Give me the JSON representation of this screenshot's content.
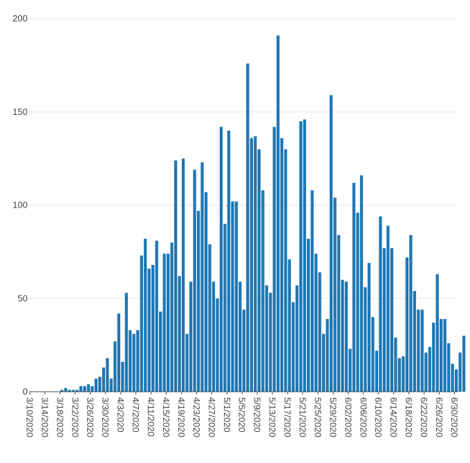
{
  "chart_data": {
    "type": "bar",
    "title": "",
    "xlabel": "",
    "ylabel": "",
    "ylim": [
      0,
      200
    ],
    "yticks": [
      0,
      50,
      100,
      150,
      200
    ],
    "grid": true,
    "bar_color": "#1f77b4",
    "x_tick_labels": [
      "3/10/2020",
      "3/14/2020",
      "3/18/2020",
      "3/22/2020",
      "3/26/2020",
      "3/30/2020",
      "4/3/2020",
      "4/7/2020",
      "4/11/2020",
      "4/15/2020",
      "4/19/2020",
      "4/23/2020",
      "4/27/2020",
      "5/1/2020",
      "5/5/2020",
      "5/9/2020",
      "5/13/2020",
      "5/17/2020",
      "5/21/2020",
      "5/25/2020",
      "5/29/2020",
      "6/02/2020",
      "6/06/2020",
      "6/10/2020",
      "6/14/2020",
      "6/18/2020",
      "6/22/2020",
      "6/26/2020",
      "6/30/2020"
    ],
    "x_start": "3/10/2020",
    "x_end": "7/1/2020",
    "values": [
      0,
      0,
      0,
      0,
      0,
      0,
      0,
      0,
      1,
      2,
      1,
      1,
      1,
      3,
      3,
      4,
      3,
      7,
      8,
      13,
      18,
      7,
      27,
      42,
      16,
      53,
      33,
      31,
      33,
      73,
      82,
      66,
      68,
      81,
      43,
      74,
      74,
      80,
      124,
      62,
      125,
      31,
      59,
      119,
      97,
      123,
      107,
      79,
      59,
      50,
      142,
      90,
      140,
      102,
      102,
      59,
      44,
      176,
      136,
      137,
      130,
      108,
      57,
      53,
      142,
      191,
      136,
      130,
      71,
      48,
      57,
      145,
      146,
      82,
      108,
      74,
      64,
      31,
      39,
      159,
      104,
      84,
      60,
      59,
      23,
      112,
      96,
      116,
      56,
      69,
      40,
      22,
      94,
      77,
      89,
      77,
      29,
      18,
      19,
      72,
      84,
      54,
      44,
      44,
      21,
      24,
      37,
      63,
      39,
      39,
      26,
      15,
      12,
      21,
      30
    ]
  }
}
